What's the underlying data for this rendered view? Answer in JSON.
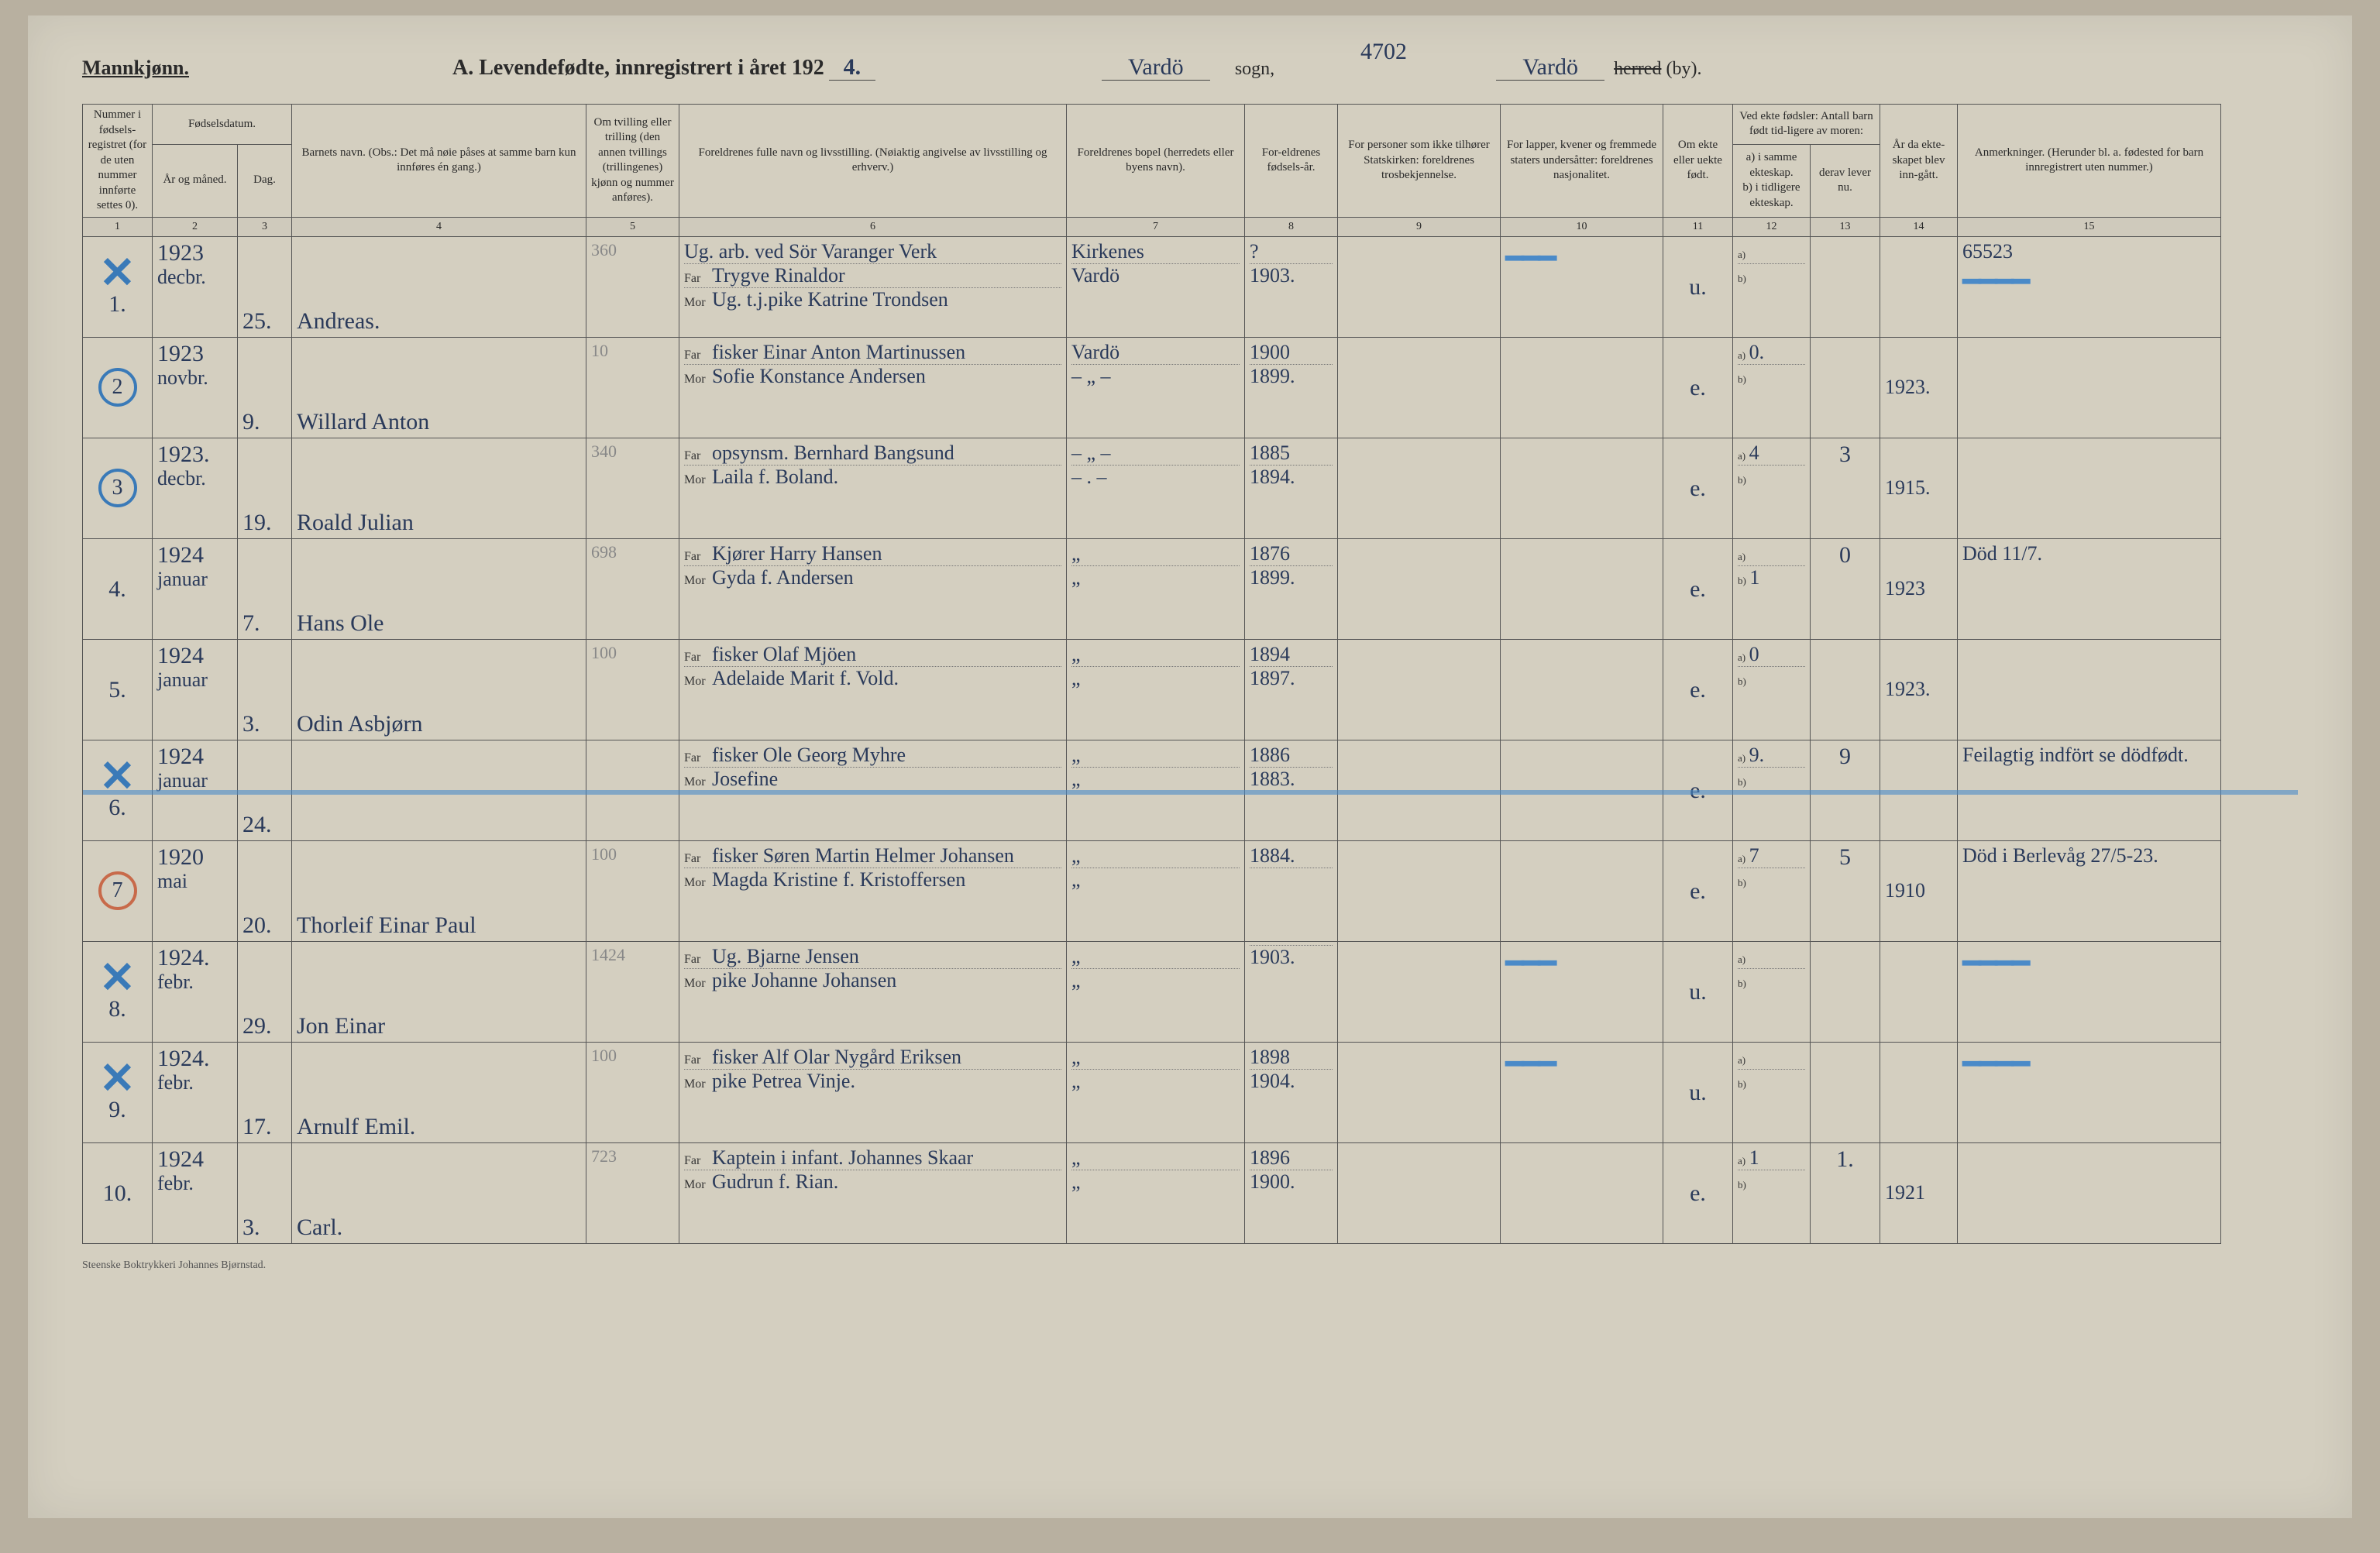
{
  "header": {
    "gender_label": "Mannkjønn.",
    "title": "A. Levendefødte, innregistrert i året 192",
    "year_suffix": "4.",
    "sogn_value": "Vardö",
    "sogn_label": "sogn,",
    "herred_value": "Vardö",
    "herred_struck": "herred",
    "herred_by": "(by).",
    "top_annotation": "4702"
  },
  "columns": {
    "c1": "Nummer i fødsels-registret (for de uten nummer innførte settes 0).",
    "c2": "Fødselsdatum.",
    "c2a": "År og måned.",
    "c2b": "Dag.",
    "c4": "Barnets navn.\n(Obs.: Det må nøie påses at samme barn kun innføres én gang.)",
    "c5": "Om tvilling eller trilling (den annen tvillings (trillingenes) kjønn og nummer anføres).",
    "c6": "Foreldrenes fulle navn og livsstilling.\n(Nøiaktig angivelse av livsstilling og erhverv.)",
    "c7": "Foreldrenes bopel (herredets eller byens navn).",
    "c8": "For-eldrenes fødsels-år.",
    "c9": "For personer som ikke tilhører Statskirken: foreldrenes trosbekjennelse.",
    "c10": "For lapper, kvener og fremmede staters undersåtter: foreldrenes nasjonalitet.",
    "c11": "Om ekte eller uekte født.",
    "c12": "Ved ekte fødsler: Antall barn født tid-ligere av moren:",
    "c12a": "a) i samme ekteskap.",
    "c12b": "b) i tidligere ekteskap.",
    "c13": "derav lever nu.",
    "c14": "År da ekte-skapet blev inn-gått.",
    "c15": "Anmerkninger.\n(Herunder bl. a. fødested for barn innregistrert uten nummer.)"
  },
  "colnums": [
    "1",
    "2",
    "3",
    "4",
    "5",
    "6",
    "7",
    "8",
    "9",
    "10",
    "11",
    "12",
    "13",
    "14",
    "15"
  ],
  "rows": [
    {
      "num": "1",
      "mark": "x",
      "year": "1923",
      "month": "decbr.",
      "day": "25.",
      "name": "Andreas.",
      "col5": "360",
      "far_occ": "Ug. arb. ved Sör Varanger Verk",
      "far": "Trygve Rinaldor",
      "mor": "Ug. t.j.pike Katrine Trondsen",
      "bopel_far": "Kirkenes",
      "bopel_mor": "Vardö",
      "fyear_far": "?",
      "fyear_mor": "1903.",
      "ekte": "u.",
      "a": "",
      "b": "",
      "c13": "",
      "c14": "",
      "anm": "65523"
    },
    {
      "num": "2",
      "mark": "circle",
      "year": "1923",
      "month": "novbr.",
      "day": "9.",
      "name": "Willard Anton",
      "col5": "10",
      "far": "fisker Einar Anton Martinussen",
      "mor": "Sofie Konstance Andersen",
      "bopel_far": "Vardö",
      "bopel_mor": "– „ –",
      "fyear_far": "1900",
      "fyear_mor": "1899.",
      "ekte": "e.",
      "a": "0.",
      "b": "",
      "c13": "",
      "c14": "1923.",
      "anm": ""
    },
    {
      "num": "3",
      "mark": "circle",
      "year": "1923.",
      "month": "decbr.",
      "day": "19.",
      "name": "Roald Julian",
      "col5": "340",
      "far": "opsynsm. Bernhard Bangsund",
      "mor": "Laila f. Boland.",
      "bopel_far": "– „ –",
      "bopel_mor": "– . –",
      "fyear_far": "1885",
      "fyear_mor": "1894.",
      "ekte": "e.",
      "a": "4",
      "b": "",
      "c13": "3",
      "c14": "1915.",
      "anm": ""
    },
    {
      "num": "4",
      "mark": "",
      "year": "1924",
      "month": "januar",
      "day": "7.",
      "name": "Hans Ole",
      "col5": "698",
      "far": "Kjører Harry Hansen",
      "mor": "Gyda f. Andersen",
      "bopel_far": "„",
      "bopel_mor": "„",
      "fyear_far": "1876",
      "fyear_mor": "1899.",
      "ekte": "e.",
      "a": "",
      "b": "1",
      "c13": "0",
      "c14": "1923",
      "anm": "Död 11/7."
    },
    {
      "num": "5",
      "mark": "",
      "year": "1924",
      "month": "januar",
      "day": "3.",
      "name": "Odin Asbjørn",
      "col5": "100",
      "far": "fisker Olaf Mjöen",
      "mor": "Adelaide Marit f. Vold.",
      "bopel_far": "„",
      "bopel_mor": "„",
      "fyear_far": "1894",
      "fyear_mor": "1897.",
      "ekte": "e.",
      "a": "0",
      "b": "",
      "c13": "",
      "c14": "1923.",
      "anm": ""
    },
    {
      "num": "6",
      "mark": "x",
      "year": "1924",
      "month": "januar",
      "day": "24.",
      "name": "",
      "col5": "",
      "far": "fisker Ole Georg Myhre",
      "mor": "Josefine",
      "bopel_far": "„",
      "bopel_mor": "„",
      "fyear_far": "1886",
      "fyear_mor": "1883.",
      "ekte": "e.",
      "a": "9.",
      "b": "",
      "c13": "9",
      "c14": "",
      "anm": "Feilagtig indfört se dödfødt.",
      "strike": true
    },
    {
      "num": "7",
      "mark": "circle-red",
      "year": "1920",
      "month": "mai",
      "day": "20.",
      "name": "Thorleif Einar Paul",
      "col5": "100",
      "far": "fisker Søren Martin Helmer Johansen",
      "mor": "Magda Kristine f. Kristoffersen",
      "bopel_far": "„",
      "bopel_mor": "„",
      "fyear_far": "1884.",
      "fyear_mor": "",
      "ekte": "e.",
      "a": "7",
      "b": "",
      "c13": "5",
      "c14": "1910",
      "anm": "Död i Berlevåg 27/5-23."
    },
    {
      "num": "8",
      "mark": "x",
      "year": "1924.",
      "month": "febr.",
      "day": "29.",
      "name": "Jon Einar",
      "col5": "1424",
      "far": "Ug. Bjarne Jensen",
      "mor": "pike Johanne Johansen",
      "bopel_far": "„",
      "bopel_mor": "„",
      "fyear_far": "",
      "fyear_mor": "1903.",
      "ekte": "u.",
      "a": "",
      "b": "",
      "c13": "",
      "c14": "",
      "anm": ""
    },
    {
      "num": "9",
      "mark": "x",
      "year": "1924.",
      "month": "febr.",
      "day": "17.",
      "name": "Arnulf Emil.",
      "col5": "100",
      "far": "fisker Alf Olar Nygård Eriksen",
      "mor": "pike Petrea Vinje.",
      "bopel_far": "„",
      "bopel_mor": "„",
      "fyear_far": "1898",
      "fyear_mor": "1904.",
      "ekte": "u.",
      "a": "",
      "b": "",
      "c13": "",
      "c14": "",
      "anm": ""
    },
    {
      "num": "10",
      "mark": "",
      "year": "1924",
      "month": "febr.",
      "day": "3.",
      "name": "Carl.",
      "col5": "723",
      "far": "Kaptein i infant. Johannes Skaar",
      "mor": "Gudrun f. Rian.",
      "bopel_far": "„",
      "bopel_mor": "„",
      "fyear_far": "1896",
      "fyear_mor": "1900.",
      "ekte": "e.",
      "a": "1",
      "b": "",
      "c13": "1.",
      "c14": "1921",
      "anm": ""
    }
  ],
  "footer": "Steenske Boktrykkeri Johannes Bjørnstad."
}
